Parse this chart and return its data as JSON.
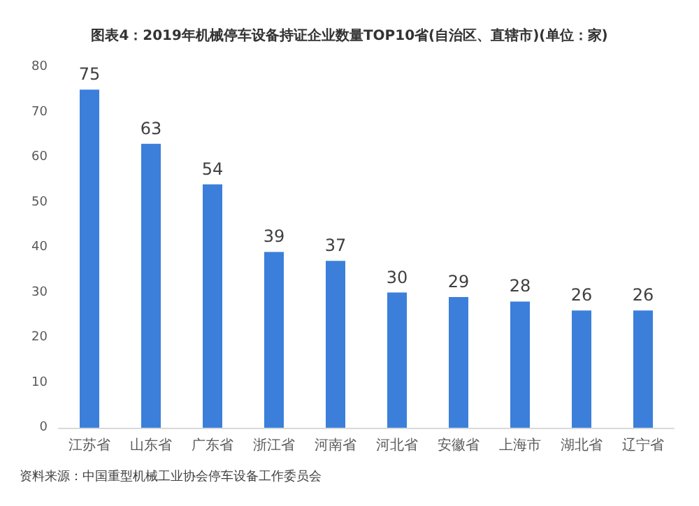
{
  "chart_data": {
    "type": "bar",
    "title": "图表4：2019年机械停车设备持证企业数量TOP10省(自治区、直辖市)(单位：家)",
    "categories": [
      "江苏省",
      "山东省",
      "广东省",
      "浙江省",
      "河南省",
      "河北省",
      "安徽省",
      "上海市",
      "湖北省",
      "辽宁省"
    ],
    "values": [
      75,
      63,
      54,
      39,
      37,
      30,
      29,
      28,
      26,
      26
    ],
    "color": "#3b7fdb",
    "ylim": [
      0,
      80
    ],
    "yticks": [
      0,
      10,
      20,
      30,
      40,
      50,
      60,
      70,
      80
    ],
    "grid": false,
    "data_labels": true,
    "annotations": [
      "资料来源：中国重型机械工业协会停车设备工作委员会"
    ]
  }
}
